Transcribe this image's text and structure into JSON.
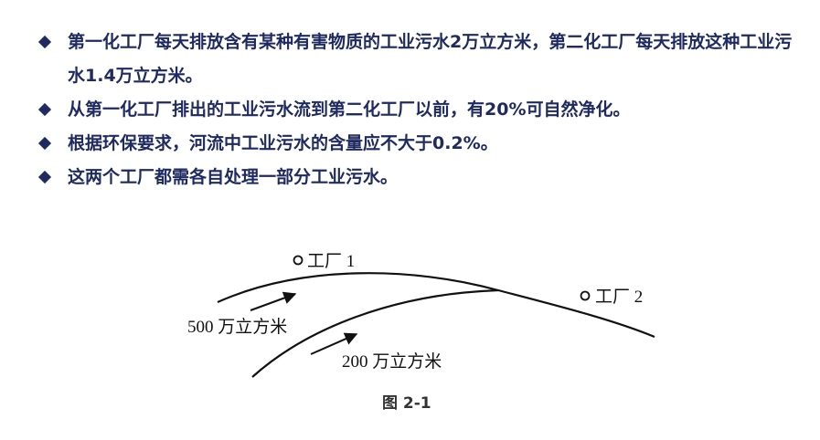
{
  "bullets": [
    {
      "text": "第一化工厂每天排放含有某种有害物质的工业污水2万立方米，第二化工厂每天排放这种工业污水1.4万立方米。"
    },
    {
      "text": "从第一化工厂排出的工业污水流到第二化工厂以前，有20%可自然净化。"
    },
    {
      "text": "根据环保要求，河流中工业污水的含量应不大于0.2%。"
    },
    {
      "text": "这两个工厂都需各自处理一部分工业污水。"
    }
  ],
  "diagram": {
    "factory1_label": "工厂 1",
    "factory2_label": "工厂 2",
    "flow1_label": "500 万立方米",
    "flow2_label": "200 万立方米",
    "caption": "图 2-1"
  }
}
